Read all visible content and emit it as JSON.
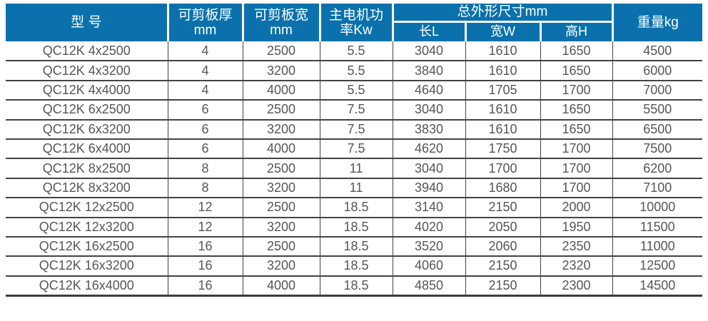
{
  "table": {
    "header": {
      "model": "型 号",
      "thickness_line1": "可剪板厚",
      "thickness_line2": "mm",
      "width_line1": "可剪板宽",
      "width_line2": "mm",
      "power_line1": "主电机功",
      "power_line2": "率Kw",
      "dimensions_group": "总外形尺寸mm",
      "length": "长L",
      "width_w": "宽W",
      "height": "高H",
      "weight": "重量kg"
    },
    "column_keys": [
      "model",
      "thickness",
      "shear-width",
      "power",
      "length",
      "width",
      "height",
      "weight"
    ],
    "rows": [
      [
        "QC12K 4x2500",
        "4",
        "2500",
        "5.5",
        "3040",
        "1610",
        "1650",
        "4500"
      ],
      [
        "QC12K 4x3200",
        "4",
        "3200",
        "5.5",
        "3840",
        "1610",
        "1650",
        "6000"
      ],
      [
        "QC12K 4x4000",
        "4",
        "4000",
        "5.5",
        "4640",
        "1705",
        "1700",
        "7000"
      ],
      [
        "QC12K 6x2500",
        "6",
        "2500",
        "7.5",
        "3040",
        "1610",
        "1650",
        "5500"
      ],
      [
        "QC12K 6x3200",
        "6",
        "3200",
        "7.5",
        "3830",
        "1610",
        "1650",
        "6500"
      ],
      [
        "QC12K 6x4000",
        "6",
        "4000",
        "7.5",
        "4620",
        "1750",
        "1700",
        "7500"
      ],
      [
        "QC12K 8x2500",
        "8",
        "2500",
        "11",
        "3040",
        "1700",
        "1700",
        "6200"
      ],
      [
        "QC12K 8x3200",
        "8",
        "3200",
        "11",
        "3940",
        "1680",
        "1700",
        "7100"
      ],
      [
        "QC12K 12x2500",
        "12",
        "2500",
        "18.5",
        "3140",
        "2150",
        "2000",
        "10000"
      ],
      [
        "QC12K 12x3200",
        "12",
        "3200",
        "18.5",
        "4020",
        "2050",
        "1950",
        "11500"
      ],
      [
        "QC12K 16x2500",
        "16",
        "2500",
        "18.5",
        "3520",
        "2060",
        "2350",
        "11000"
      ],
      [
        "QC12K 16x3200",
        "16",
        "3200",
        "18.5",
        "4060",
        "2150",
        "2320",
        "12500"
      ],
      [
        "QC12K 16x4000",
        "16",
        "4000",
        "18.5",
        "4850",
        "2150",
        "2300",
        "14500"
      ]
    ]
  },
  "colors": {
    "header_background": "#0a71ac",
    "header_text": "#ffffff",
    "grid_line": "#414347",
    "body_text": "#55565b",
    "page_background": "#ffffff"
  }
}
